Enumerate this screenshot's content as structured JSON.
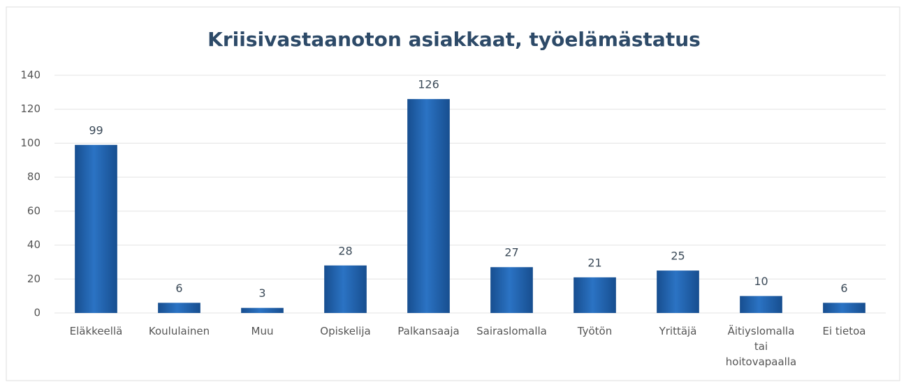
{
  "chart_data": {
    "type": "bar",
    "title": "Kriisivastaanoton asiakkaat, työelämästatus",
    "categories": [
      "Eläkkeellä",
      "Koululainen",
      "Muu",
      "Opiskelija",
      "Palkansaaja",
      "Sairaslomalla",
      "Työtön",
      "Yrittäjä",
      "Äitiyslomalla tai hoitovapaalla",
      "Ei tietoa"
    ],
    "values": [
      99,
      6,
      3,
      28,
      126,
      27,
      21,
      25,
      10,
      6
    ],
    "color": "#1f5fa8",
    "ylim": [
      0,
      140
    ],
    "yticks": [
      0,
      20,
      40,
      60,
      80,
      100,
      120,
      140
    ],
    "grid": true
  }
}
